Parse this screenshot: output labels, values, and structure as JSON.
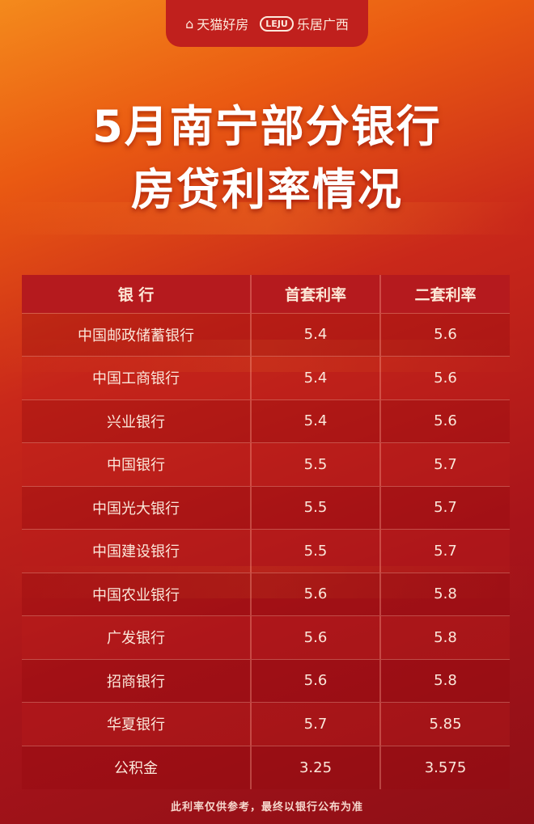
{
  "brand": {
    "tmall": "天猫好房",
    "leju_mark": "LEJU",
    "leju": "乐居广西"
  },
  "title": {
    "line1": "5月南宁部分银行",
    "line2": "房贷利率情况"
  },
  "table": {
    "headers": [
      "银 行",
      "首套利率",
      "二套利率"
    ],
    "rows": [
      [
        "中国邮政储蓄银行",
        "5.4",
        "5.6"
      ],
      [
        "中国工商银行",
        "5.4",
        "5.6"
      ],
      [
        "兴业银行",
        "5.4",
        "5.6"
      ],
      [
        "中国银行",
        "5.5",
        "5.7"
      ],
      [
        "中国光大银行",
        "5.5",
        "5.7"
      ],
      [
        "中国建设银行",
        "5.5",
        "5.7"
      ],
      [
        "中国农业银行",
        "5.6",
        "5.8"
      ],
      [
        "广发银行",
        "5.6",
        "5.8"
      ],
      [
        "招商银行",
        "5.6",
        "5.8"
      ],
      [
        "华夏银行",
        "5.7",
        "5.85"
      ],
      [
        "公积金",
        "3.25",
        "3.575"
      ]
    ]
  },
  "footer": "此利率仅供参考，最终以银行公布为准"
}
